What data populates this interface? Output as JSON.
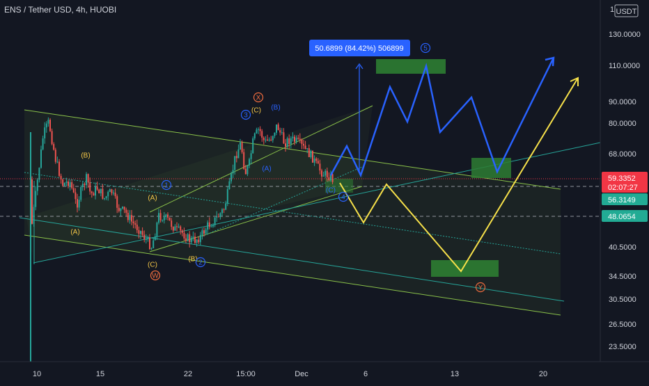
{
  "header": {
    "symbol": "ENS / Tether USD, 4h, HUOBI"
  },
  "currency_button": "USDT",
  "top_scale_label": "1 1",
  "chart_data": {
    "type": "candlestick",
    "title": "ENS / Tether USD, 4h, HUOBI",
    "scale": "log",
    "ylim": [
      21.5,
      150
    ],
    "y_ticks": [
      "130.0000",
      "110.0000",
      "90.0000",
      "80.0000",
      "68.0000",
      "48.0000",
      "40.5000",
      "34.5000",
      "30.5000",
      "26.5000",
      "23.5000"
    ],
    "x_ticks": [
      "10",
      "15",
      "22",
      "15:00",
      "Dec",
      "6",
      "13",
      "20"
    ],
    "price_tags": [
      {
        "label": "59.3352",
        "sub": "02:07:27",
        "value": 59.3352,
        "color": "#f23645",
        "kind": "last"
      },
      {
        "label": "56.3149",
        "value": 56.3149,
        "color": "#22ab94",
        "kind": "level"
      },
      {
        "label": "48.0654",
        "value": 48.0654,
        "color": "#22ab94",
        "kind": "level"
      }
    ],
    "measure_label": "50.6899 (84.42%) 506899",
    "wave_labels": [
      {
        "text": "(B)",
        "color": "#f7c948"
      },
      {
        "text": "(A)",
        "color": "#f7c948"
      },
      {
        "text": "(A)",
        "color": "#f7c948"
      },
      {
        "text": "(C)",
        "color": "#f7c948"
      },
      {
        "text": "(B)",
        "color": "#f7c948"
      },
      {
        "text": "(C)",
        "color": "#f7c948"
      },
      {
        "text": "(B)",
        "color": "#2962ff"
      },
      {
        "text": "(A)",
        "color": "#2962ff"
      },
      {
        "text": "(C)",
        "color": "#2962ff"
      },
      {
        "text": "W",
        "color": "#ef6c3e",
        "circled": true
      },
      {
        "text": "X",
        "color": "#ef6c3e",
        "circled": true
      },
      {
        "text": "Y",
        "color": "#ef6c3e",
        "circled": true
      },
      {
        "text": "1",
        "color": "#2962ff",
        "circled": true
      },
      {
        "text": "2",
        "color": "#2962ff",
        "circled": true
      },
      {
        "text": "3",
        "color": "#2962ff",
        "circled": true
      },
      {
        "text": "4",
        "color": "#2962ff",
        "circled": true
      },
      {
        "text": "5",
        "color": "#2962ff",
        "circled": true
      }
    ],
    "colors": {
      "background": "#131722",
      "up": "#26a69a",
      "down": "#ef5350",
      "channel": "#8bc34a",
      "teal_line": "#26a69a",
      "blue_path": "#2962ff",
      "yellow_path": "#f7e14a",
      "target_box": "#2e7d32",
      "measure": "#2962ff"
    }
  }
}
